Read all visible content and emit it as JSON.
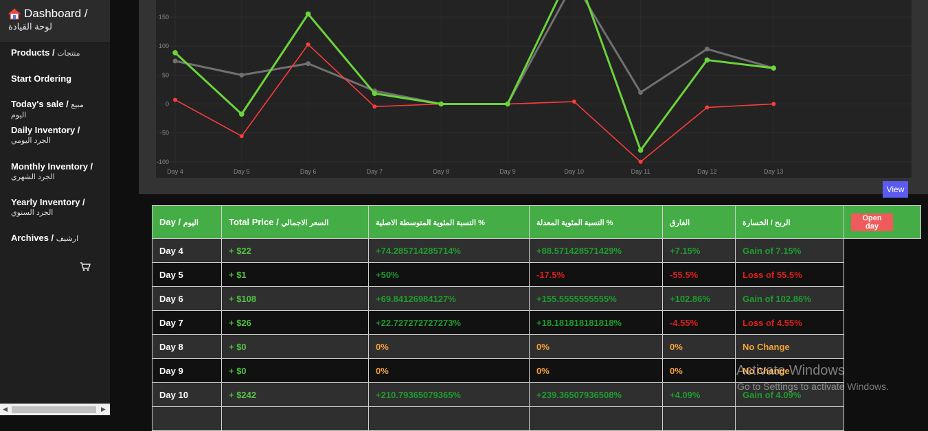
{
  "sidebar": {
    "title": "Dashboard /",
    "subtitle": "لوحة القيادة",
    "home_icon": "home-icon",
    "items": [
      {
        "label": "Products /",
        "ar": "منتجات"
      },
      {
        "label": "Start Ordering",
        "ar": ""
      },
      {
        "label": "Today's sale /",
        "ar": "مبيع اليوم"
      },
      {
        "label": "Daily Inventory /",
        "ar": "الجرد اليومي"
      },
      {
        "label": "Monthly Inventory /",
        "ar": "الجرد الشهري"
      },
      {
        "label": "Yearly Inventory /",
        "ar": "الجرد السنوي"
      },
      {
        "label": "Archives /",
        "ar": "ارشيف"
      }
    ],
    "cart_icon": "cart-icon"
  },
  "chart_data": {
    "type": "line",
    "categories": [
      "Day 4",
      "Day 5",
      "Day 6",
      "Day 7",
      "Day 8",
      "Day 9",
      "Day 10",
      "Day 11",
      "Day 12",
      "Day 13"
    ],
    "yticks": [
      150,
      100,
      50,
      0,
      -50,
      -100
    ],
    "ylim": [
      -100,
      175
    ],
    "series": [
      {
        "color": "#707070",
        "values": [
          74.29,
          50,
          69.84,
          22.73,
          0,
          0,
          210.79,
          20,
          95,
          62
        ]
      },
      {
        "color": "#ff3b3b",
        "values": [
          7.15,
          -55.5,
          102.86,
          -4.55,
          0,
          0,
          4.09,
          -100,
          -6,
          0
        ]
      },
      {
        "color": "#6ad43a",
        "values": [
          88.57,
          -17.5,
          155.56,
          18.18,
          0,
          0,
          239.37,
          -80,
          76,
          62
        ]
      }
    ],
    "grid": true
  },
  "view_button": "View",
  "table": {
    "headers": [
      {
        "en": "Day /",
        "ar": "اليوم"
      },
      {
        "en": "Total Price /",
        "ar": "السعر الاجمالي"
      },
      {
        "en": "",
        "ar": "التسبة المئوية المتوسطة الاصلية %"
      },
      {
        "en": "",
        "ar": "التسبة المئوية المعدلة %"
      },
      {
        "en": "",
        "ar": "الفارق"
      },
      {
        "en": "",
        "ar": "الربح / الخسارة"
      }
    ],
    "open_day": "Open day",
    "rows": [
      {
        "day": "Day 4",
        "price": "+ $22",
        "orig": "+74.285714285714%",
        "adj": "+88.571428571429%",
        "diff": "+7.15%",
        "result": "Gain of 7.15%",
        "s_orig": "pos",
        "s_adj": "pos",
        "s_diff": "pos",
        "s_res": "pos"
      },
      {
        "day": "Day 5",
        "price": "+ $1",
        "orig": "+50%",
        "adj": "-17.5%",
        "diff": "-55.5%",
        "result": "Loss of 55.5%",
        "s_orig": "pos",
        "s_adj": "neg",
        "s_diff": "neg",
        "s_res": "neg"
      },
      {
        "day": "Day 6",
        "price": "+ $108",
        "orig": "+69.84126984127%",
        "adj": "+155.5555555555%",
        "diff": "+102.86%",
        "result": "Gain of 102.86%",
        "s_orig": "pos",
        "s_adj": "pos",
        "s_diff": "pos",
        "s_res": "pos"
      },
      {
        "day": "Day 7",
        "price": "+ $26",
        "orig": "+22.727272727273%",
        "adj": "+18.181818181818%",
        "diff": "-4.55%",
        "result": "Loss of 4.55%",
        "s_orig": "pos",
        "s_adj": "pos",
        "s_diff": "neg",
        "s_res": "neg"
      },
      {
        "day": "Day 8",
        "price": "+ $0",
        "orig": "0%",
        "adj": "0%",
        "diff": "0%",
        "result": "No Change",
        "s_orig": "zero",
        "s_adj": "zero",
        "s_diff": "zero",
        "s_res": "zero"
      },
      {
        "day": "Day 9",
        "price": "+ $0",
        "orig": "0%",
        "adj": "0%",
        "diff": "0%",
        "result": "No Change",
        "s_orig": "zero",
        "s_adj": "zero",
        "s_diff": "zero",
        "s_res": "zero"
      },
      {
        "day": "Day 10",
        "price": "+ $242",
        "orig": "+210.79365079365%",
        "adj": "+239.36507936508%",
        "diff": "+4.09%",
        "result": "Gain of 4.09%",
        "s_orig": "pos",
        "s_adj": "pos",
        "s_diff": "pos",
        "s_res": "pos"
      }
    ]
  },
  "watermark": {
    "line1": "Activate Windows",
    "line2": "Go to Settings to activate Windows."
  }
}
